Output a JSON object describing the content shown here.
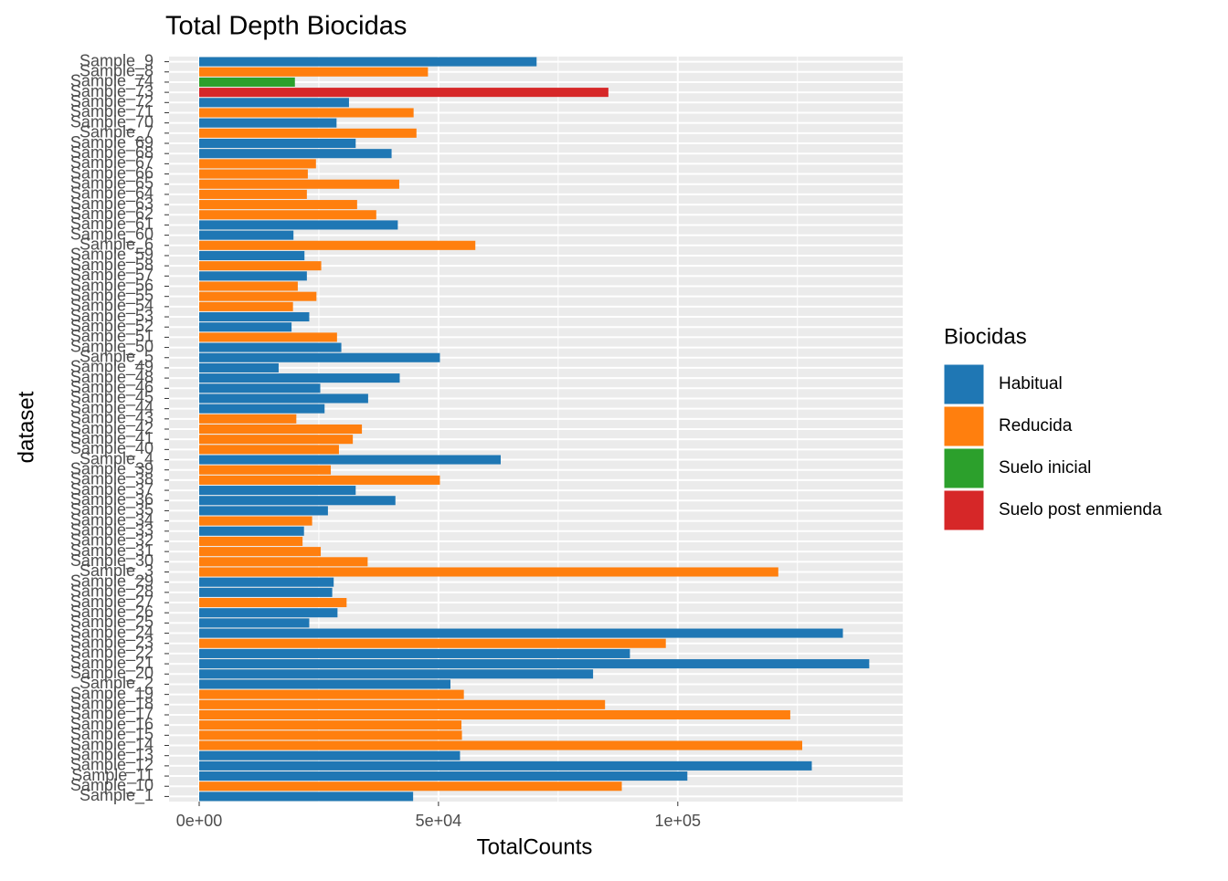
{
  "chart_data": {
    "type": "hbar",
    "title": "Total Depth Biocidas",
    "x_label": "TotalCounts",
    "y_label": "dataset",
    "legend_title": "Biocidas",
    "series": [
      {
        "name": "Habitual",
        "color": "#1f77b4"
      },
      {
        "name": "Reducida",
        "color": "#ff7f0e"
      },
      {
        "name": "Suelo inicial",
        "color": "#2ca02c"
      },
      {
        "name": "Suelo post enmienda",
        "color": "#d62728"
      }
    ],
    "categories": [
      "Sample_9",
      "Sample_8",
      "Sample_74",
      "Sample_73",
      "Sample_72",
      "Sample_71",
      "Sample_70",
      "Sample_7",
      "Sample_69",
      "Sample_68",
      "Sample_67",
      "Sample_66",
      "Sample_65",
      "Sample_64",
      "Sample_63",
      "Sample_62",
      "Sample_61",
      "Sample_60",
      "Sample_6",
      "Sample_59",
      "Sample_58",
      "Sample_57",
      "Sample_56",
      "Sample_55",
      "Sample_54",
      "Sample_53",
      "Sample_52",
      "Sample_51",
      "Sample_50",
      "Sample_5",
      "Sample_49",
      "Sample_48",
      "Sample_46",
      "Sample_45",
      "Sample_44",
      "Sample_43",
      "Sample_42",
      "Sample_41",
      "Sample_40",
      "Sample_4",
      "Sample_39",
      "Sample_38",
      "Sample_37",
      "Sample_36",
      "Sample_35",
      "Sample_34",
      "Sample_33",
      "Sample_32",
      "Sample_31",
      "Sample_30",
      "Sample_3",
      "Sample_29",
      "Sample_28",
      "Sample_27",
      "Sample_26",
      "Sample_25",
      "Sample_24",
      "Sample_23",
      "Sample_22",
      "Sample_21",
      "Sample_20",
      "Sample_2",
      "Sample_19",
      "Sample_18",
      "Sample_17",
      "Sample_16",
      "Sample_15",
      "Sample_14",
      "Sample_13",
      "Sample_12",
      "Sample_11",
      "Sample_10",
      "Sample_1"
    ],
    "values": [
      70500,
      47800,
      20000,
      85500,
      31300,
      44800,
      28700,
      45400,
      32700,
      40200,
      24400,
      22700,
      41800,
      22500,
      33000,
      37000,
      41500,
      19700,
      57700,
      22000,
      25500,
      22500,
      20600,
      24500,
      19600,
      23000,
      19300,
      28800,
      29700,
      50300,
      16600,
      41900,
      25300,
      35300,
      26200,
      20300,
      34000,
      32100,
      29200,
      63000,
      27500,
      50300,
      32700,
      41000,
      26900,
      23600,
      21900,
      21600,
      25400,
      35200,
      121000,
      28100,
      27800,
      30800,
      28900,
      23000,
      134500,
      97500,
      90000,
      140000,
      82300,
      52500,
      55300,
      84800,
      123500,
      54800,
      54900,
      126000,
      54500,
      128000,
      102000,
      88300,
      44700
    ],
    "groups": [
      0,
      1,
      2,
      3,
      0,
      1,
      0,
      1,
      0,
      0,
      1,
      1,
      1,
      1,
      1,
      1,
      0,
      0,
      1,
      0,
      1,
      0,
      1,
      1,
      1,
      0,
      0,
      1,
      0,
      0,
      0,
      0,
      0,
      0,
      0,
      1,
      1,
      1,
      1,
      0,
      1,
      1,
      0,
      0,
      0,
      1,
      0,
      1,
      1,
      1,
      1,
      0,
      0,
      1,
      0,
      0,
      0,
      1,
      0,
      0,
      0,
      0,
      1,
      1,
      1,
      1,
      1,
      1,
      0,
      0,
      0,
      1,
      0
    ],
    "xlim": [
      -6300,
      147000
    ],
    "xticks": [
      {
        "value": 0,
        "label": "0e+00"
      },
      {
        "value": 50000,
        "label": "5e+04"
      },
      {
        "value": 100000,
        "label": "1e+05"
      }
    ],
    "xminorticks": [
      25000,
      75000,
      125000
    ],
    "grid": true
  }
}
